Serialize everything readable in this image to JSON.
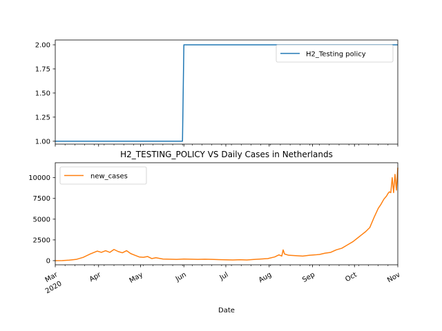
{
  "chart_data": [
    {
      "type": "line",
      "title": "",
      "xlabel": "",
      "ylabel": "",
      "ylim": [
        0.97,
        2.05
      ],
      "yticks": [
        "1.00",
        "1.25",
        "1.50",
        "1.75",
        "2.00"
      ],
      "ytick_values": [
        1.0,
        1.25,
        1.5,
        1.75,
        2.0
      ],
      "grid": false,
      "legend_position": "top-right",
      "series": [
        {
          "name": "H2_Testing policy",
          "color": "#1f77b4",
          "x": [
            "2020-03-01",
            "2020-05-31",
            "2020-06-01",
            "2020-11-01"
          ],
          "y": [
            1,
            1,
            2,
            2
          ]
        }
      ]
    },
    {
      "type": "line",
      "title": "H2_TESTING_POLICY VS Daily Cases in Netherlands",
      "xlabel": "Date",
      "ylabel": "",
      "ylim": [
        -500,
        11800
      ],
      "yticks": [
        "0",
        "2500",
        "5000",
        "7500",
        "10000"
      ],
      "ytick_values": [
        0,
        2500,
        5000,
        7500,
        10000
      ],
      "xticks": [
        {
          "date": "2020-03-01",
          "label": "Mar",
          "sublabel": "2020"
        },
        {
          "date": "2020-04-01",
          "label": "Apr"
        },
        {
          "date": "2020-05-01",
          "label": "May"
        },
        {
          "date": "2020-06-01",
          "label": "Jun"
        },
        {
          "date": "2020-07-01",
          "label": "Jul"
        },
        {
          "date": "2020-08-01",
          "label": "Aug"
        },
        {
          "date": "2020-09-01",
          "label": "Sep"
        },
        {
          "date": "2020-10-01",
          "label": "Oct"
        },
        {
          "date": "2020-11-01",
          "label": "Nov"
        }
      ],
      "grid": false,
      "legend_position": "top-left",
      "series": [
        {
          "name": "new_cases",
          "color": "#ff7f0e",
          "x": [
            "2020-03-01",
            "2020-03-06",
            "2020-03-11",
            "2020-03-16",
            "2020-03-21",
            "2020-03-26",
            "2020-03-31",
            "2020-04-03",
            "2020-04-06",
            "2020-04-09",
            "2020-04-12",
            "2020-04-15",
            "2020-04-18",
            "2020-04-21",
            "2020-04-24",
            "2020-04-27",
            "2020-04-30",
            "2020-05-03",
            "2020-05-06",
            "2020-05-09",
            "2020-05-12",
            "2020-05-17",
            "2020-05-22",
            "2020-05-27",
            "2020-06-01",
            "2020-06-06",
            "2020-06-11",
            "2020-06-16",
            "2020-06-21",
            "2020-06-26",
            "2020-07-01",
            "2020-07-06",
            "2020-07-11",
            "2020-07-16",
            "2020-07-21",
            "2020-07-26",
            "2020-07-31",
            "2020-08-05",
            "2020-08-08",
            "2020-08-10",
            "2020-08-11",
            "2020-08-12",
            "2020-08-15",
            "2020-08-20",
            "2020-08-25",
            "2020-08-30",
            "2020-09-03",
            "2020-09-06",
            "2020-09-10",
            "2020-09-14",
            "2020-09-18",
            "2020-09-22",
            "2020-09-26",
            "2020-09-30",
            "2020-10-03",
            "2020-10-06",
            "2020-10-09",
            "2020-10-12",
            "2020-10-15",
            "2020-10-18",
            "2020-10-20",
            "2020-10-22",
            "2020-10-24",
            "2020-10-25",
            "2020-10-26",
            "2020-10-27",
            "2020-10-28",
            "2020-10-29",
            "2020-10-30",
            "2020-10-31",
            "2020-11-01"
          ],
          "y": [
            0,
            10,
            60,
            150,
            400,
            800,
            1150,
            1000,
            1200,
            1000,
            1350,
            1100,
            950,
            1200,
            850,
            650,
            450,
            400,
            500,
            250,
            350,
            200,
            180,
            150,
            200,
            180,
            150,
            180,
            150,
            120,
            100,
            80,
            110,
            80,
            140,
            200,
            250,
            450,
            700,
            550,
            1300,
            800,
            650,
            600,
            550,
            650,
            700,
            750,
            900,
            1000,
            1300,
            1500,
            1900,
            2300,
            2700,
            3100,
            3500,
            4000,
            5200,
            6300,
            6800,
            7400,
            7800,
            8100,
            8300,
            8200,
            10000,
            8200,
            10400,
            8500,
            11200
          ]
        }
      ]
    }
  ]
}
